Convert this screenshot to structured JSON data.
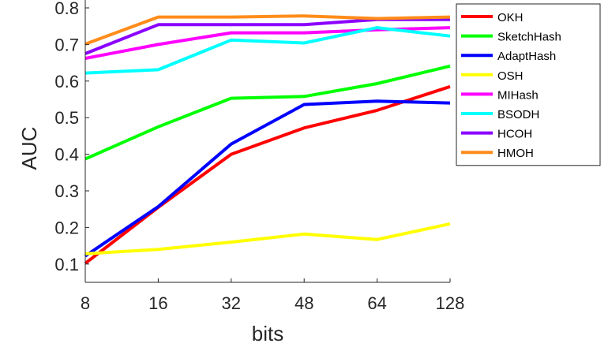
{
  "chart_data": {
    "type": "line",
    "xlabel": "bits",
    "ylabel": "AUC",
    "categories": [
      "8",
      "16",
      "32",
      "48",
      "64",
      "128"
    ],
    "ylim": [
      0.05,
      0.8
    ],
    "yticks": [
      "0.1",
      "0.2",
      "0.3",
      "0.4",
      "0.5",
      "0.6",
      "0.7",
      "0.8"
    ],
    "grid": false,
    "legend_position": "top-right",
    "series": [
      {
        "name": "OKH",
        "color": "#ff0000",
        "values": [
          0.102,
          0.255,
          0.4,
          0.472,
          0.52,
          0.585
        ]
      },
      {
        "name": "SketchHash",
        "color": "#00ff00",
        "values": [
          0.387,
          0.475,
          0.553,
          0.558,
          0.593,
          0.641
        ]
      },
      {
        "name": "AdaptHash",
        "color": "#0000ff",
        "values": [
          0.122,
          0.257,
          0.428,
          0.536,
          0.545,
          0.54
        ]
      },
      {
        "name": "OSH",
        "color": "#ffff00",
        "values": [
          0.128,
          0.14,
          0.16,
          0.182,
          0.167,
          0.21
        ]
      },
      {
        "name": "MIHash",
        "color": "#ff00ff",
        "values": [
          0.662,
          0.7,
          0.732,
          0.732,
          0.74,
          0.746
        ]
      },
      {
        "name": "BSODH",
        "color": "#00ffff",
        "values": [
          0.622,
          0.631,
          0.712,
          0.704,
          0.746,
          0.723
        ]
      },
      {
        "name": "HCOH",
        "color": "#8b00ff",
        "values": [
          0.675,
          0.754,
          0.754,
          0.754,
          0.768,
          0.768
        ]
      },
      {
        "name": "HMOH",
        "color": "#ff8c1a",
        "values": [
          0.701,
          0.775,
          0.775,
          0.778,
          0.771,
          0.775
        ]
      }
    ]
  }
}
